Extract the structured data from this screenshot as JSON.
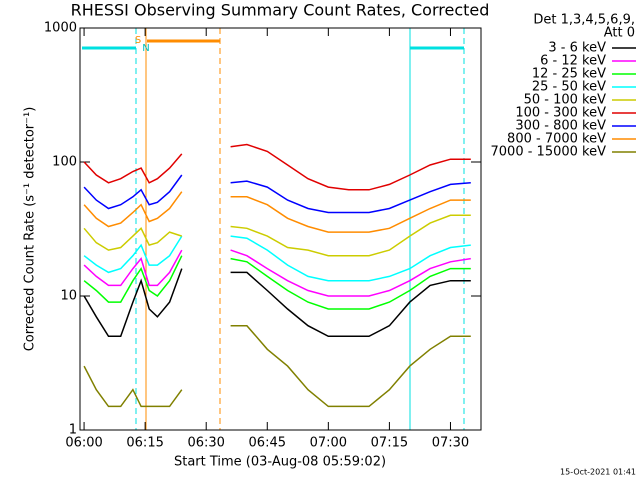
{
  "chart_data": {
    "type": "line",
    "title": "RHESSI Observing Summary Count Rates, Corrected",
    "x_label": "Start Time (03-Aug-08 05:59:02)",
    "y_label": "Corrected Count Rate (s⁻¹ detector⁻¹)",
    "legend_title": [
      "Det 1,3,4,5,6,9,",
      "Att 0"
    ],
    "markers": [
      "S",
      "N"
    ],
    "footer": "15-Oct-2021 01:41",
    "log_y": true,
    "xlim": [
      -1,
      97.5
    ],
    "ylim": [
      1,
      1000
    ],
    "xticks": [
      {
        "value": 0,
        "label": "06:00"
      },
      {
        "value": 15,
        "label": "06:15"
      },
      {
        "value": 30,
        "label": "06:30"
      },
      {
        "value": 45,
        "label": "06:45"
      },
      {
        "value": 60,
        "label": "07:00"
      },
      {
        "value": 75,
        "label": "07:15"
      },
      {
        "value": 90,
        "label": "07:30"
      }
    ],
    "yticks": [
      1,
      10,
      100,
      1000
    ],
    "x": [
      0,
      3,
      6,
      9,
      12,
      14,
      16,
      18,
      21,
      24,
      30,
      36,
      40,
      45,
      50,
      55,
      60,
      65,
      70,
      75,
      80,
      85,
      90,
      95
    ],
    "series": [
      {
        "name": "3 - 6 keV",
        "color": "#000000",
        "values": [
          10,
          7,
          5,
          5,
          9,
          13,
          8,
          7,
          9,
          16,
          null,
          15,
          15,
          11,
          8,
          6,
          5,
          5,
          5,
          6,
          9,
          12,
          13,
          13
        ]
      },
      {
        "name": "6 - 12 keV",
        "color": "#ff00ff",
        "values": [
          17,
          14,
          12,
          12,
          16,
          19,
          12,
          12,
          15,
          22,
          null,
          22,
          20,
          16,
          13,
          11,
          10,
          10,
          10,
          11,
          13,
          16,
          18,
          19
        ]
      },
      {
        "name": "12 - 25 keV",
        "color": "#00ff00",
        "values": [
          13,
          11,
          9,
          9,
          13,
          16,
          11,
          10,
          13,
          20,
          null,
          19,
          18,
          14,
          11,
          9,
          8,
          8,
          8,
          9,
          11,
          14,
          16,
          16
        ]
      },
      {
        "name": "25 - 50 keV",
        "color": "#00ffff",
        "values": [
          20,
          17,
          15,
          16,
          20,
          24,
          17,
          17,
          20,
          28,
          null,
          28,
          27,
          22,
          17,
          14,
          13,
          13,
          13,
          14,
          16,
          20,
          23,
          24
        ]
      },
      {
        "name": "50 - 100 keV",
        "color": "#cccc00",
        "values": [
          32,
          25,
          22,
          23,
          28,
          32,
          24,
          25,
          30,
          28,
          null,
          33,
          32,
          28,
          23,
          22,
          20,
          20,
          20,
          22,
          28,
          35,
          40,
          40
        ]
      },
      {
        "name": "100 - 300 keV",
        "color": "#e00000",
        "values": [
          100,
          80,
          70,
          75,
          85,
          90,
          70,
          75,
          90,
          115,
          null,
          130,
          135,
          120,
          95,
          75,
          65,
          62,
          62,
          68,
          80,
          95,
          105,
          105
        ]
      },
      {
        "name": "300 - 800 keV",
        "color": "#0000ff",
        "values": [
          65,
          52,
          45,
          48,
          55,
          62,
          48,
          50,
          60,
          80,
          null,
          70,
          72,
          65,
          52,
          45,
          42,
          42,
          42,
          45,
          52,
          60,
          68,
          70
        ]
      },
      {
        "name": "800 - 7000 keV",
        "color": "#ff8c00",
        "values": [
          48,
          38,
          33,
          35,
          42,
          48,
          36,
          38,
          45,
          60,
          null,
          55,
          55,
          48,
          38,
          33,
          30,
          30,
          30,
          32,
          38,
          45,
          52,
          52
        ]
      },
      {
        "name": "7000 - 15000 keV",
        "color": "#808000",
        "values": [
          3,
          2,
          1.5,
          1.5,
          2,
          1.5,
          1.5,
          1.5,
          1.5,
          2,
          null,
          6,
          6,
          4,
          3,
          2,
          1.5,
          1.5,
          1.5,
          2,
          3,
          4,
          5,
          5
        ]
      }
    ]
  }
}
